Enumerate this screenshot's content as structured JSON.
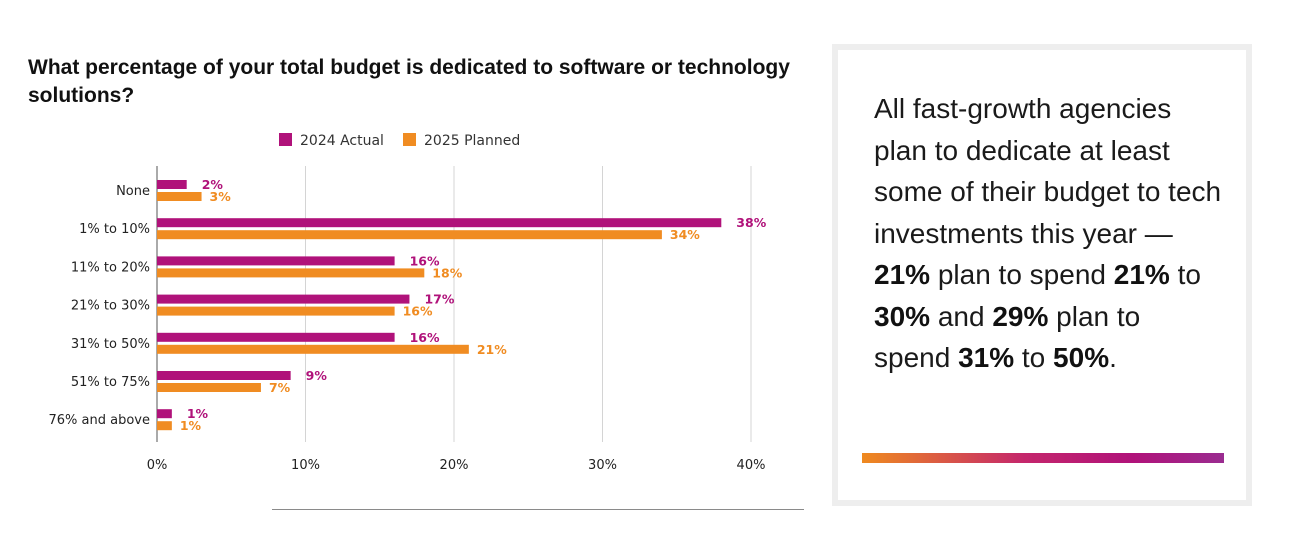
{
  "chart_data": {
    "type": "bar",
    "orientation": "horizontal",
    "title": "What percentage of your total budget is dedicated to software or technology solutions?",
    "categories": [
      "None",
      "1% to 10%",
      "11% to 20%",
      "21% to 30%",
      "31% to 50%",
      "51% to 75%",
      "76% and above"
    ],
    "series": [
      {
        "name": "2024 Actual",
        "color": "#b0127a",
        "values": [
          2,
          38,
          16,
          17,
          16,
          9,
          1
        ],
        "labels": [
          "2%",
          "38%",
          "16%",
          "17%",
          "16%",
          "9%",
          "1%"
        ]
      },
      {
        "name": "2025 Planned",
        "color": "#f08c22",
        "values": [
          3,
          34,
          18,
          16,
          21,
          7,
          1
        ],
        "labels": [
          "3%",
          "34%",
          "18%",
          "16%",
          "21%",
          "7%",
          "1%"
        ]
      }
    ],
    "x_ticks": [
      0,
      10,
      20,
      30,
      40
    ],
    "x_tick_labels": [
      "0%",
      "10%",
      "20%",
      "30%",
      "40%"
    ],
    "xlim": [
      0,
      40
    ],
    "grid": true,
    "legend_position": "top"
  },
  "callout": {
    "t1": "All fast-growth agencies plan to dedicate at least some of their budget to tech investments this year — ",
    "b1": "21%",
    "t2": " plan to spend ",
    "b2": "21%",
    "t3": " to ",
    "b3": "30%",
    "t4": " and ",
    "b4": "29%",
    "t5": " plan to spend ",
    "b5": "31%",
    "t6": " to ",
    "b6": "50%",
    "t7": ".",
    "gradient_colors": [
      "#ef8a1f",
      "#c4266c",
      "#b0127a",
      "#9a2c90"
    ]
  }
}
